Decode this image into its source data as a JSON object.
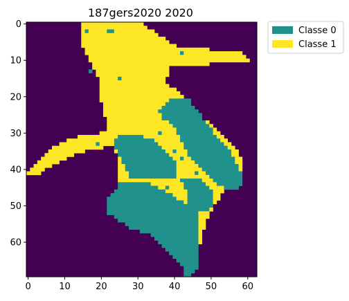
{
  "chart_data": {
    "type": "heatmap",
    "title": "187gers2020 2020",
    "xlabel": "",
    "ylabel": "",
    "grid": false,
    "x_ticks": [
      0,
      10,
      20,
      30,
      40,
      50,
      60
    ],
    "y_ticks": [
      0,
      10,
      20,
      30,
      40,
      50,
      60
    ],
    "xlim": [
      -0.5,
      62.5
    ],
    "ylim": [
      69.5,
      -0.5
    ],
    "n_cols": 63,
    "n_rows": 70,
    "colors": {
      "background": "#440154",
      "classe_0": "#21918c",
      "classe_1": "#fde725"
    },
    "legend": {
      "placement": "outside-top-right",
      "entries": [
        {
          "label": "Classe 0",
          "color": "#21918c"
        },
        {
          "label": "Classe 1",
          "color": "#fde725"
        }
      ]
    },
    "classe_1_regions": [
      {
        "name": "top-head",
        "rows": [
          [
            0,
            15,
            31
          ],
          [
            3,
            15,
            35
          ],
          [
            6,
            15,
            40
          ],
          [
            8,
            16,
            58
          ],
          [
            10,
            17,
            60
          ],
          [
            12,
            18,
            38
          ],
          [
            16,
            20,
            37
          ],
          [
            20,
            20,
            42
          ],
          [
            24,
            21,
            44
          ],
          [
            28,
            22,
            50
          ],
          [
            31,
            23,
            53
          ],
          [
            34,
            24,
            56
          ],
          [
            38,
            25,
            58
          ],
          [
            42,
            25,
            58
          ],
          [
            46,
            25,
            53
          ],
          [
            50,
            30,
            50
          ],
          [
            54,
            38,
            48
          ],
          [
            58,
            42,
            47
          ],
          [
            62,
            42,
            46
          ]
        ]
      },
      {
        "name": "left-arm",
        "rows": [
          [
            30,
            20,
            30
          ],
          [
            31,
            14,
            30
          ],
          [
            32,
            11,
            25
          ],
          [
            33,
            9,
            23
          ],
          [
            34,
            7,
            20
          ],
          [
            35,
            6,
            15
          ],
          [
            36,
            5,
            12
          ],
          [
            37,
            4,
            10
          ],
          [
            38,
            3,
            8
          ],
          [
            39,
            2,
            6
          ],
          [
            40,
            1,
            4
          ],
          [
            41,
            0,
            3
          ]
        ]
      }
    ],
    "classe_0_regions": [
      {
        "name": "right-band",
        "rows": [
          [
            21,
            39,
            44
          ],
          [
            22,
            38,
            44
          ],
          [
            23,
            37,
            45
          ],
          [
            24,
            36,
            46
          ],
          [
            26,
            37,
            47
          ],
          [
            28,
            40,
            49
          ],
          [
            30,
            41,
            50
          ],
          [
            32,
            42,
            52
          ],
          [
            34,
            43,
            54
          ],
          [
            36,
            44,
            55
          ],
          [
            38,
            46,
            56
          ],
          [
            40,
            48,
            57
          ],
          [
            42,
            50,
            58
          ],
          [
            44,
            52,
            58
          ],
          [
            45,
            54,
            57
          ]
        ]
      },
      {
        "name": "center-band",
        "rows": [
          [
            31,
            25,
            31
          ],
          [
            32,
            24,
            34
          ],
          [
            34,
            24,
            36
          ],
          [
            36,
            25,
            38
          ],
          [
            38,
            26,
            40
          ],
          [
            40,
            27,
            40
          ],
          [
            42,
            28,
            40
          ]
        ]
      },
      {
        "name": "lower-body",
        "rows": [
          [
            44,
            25,
            33
          ],
          [
            46,
            24,
            37
          ],
          [
            48,
            22,
            40
          ],
          [
            50,
            22,
            44
          ],
          [
            52,
            22,
            46
          ],
          [
            54,
            25,
            46
          ],
          [
            56,
            28,
            46
          ],
          [
            58,
            34,
            46
          ],
          [
            60,
            36,
            46
          ],
          [
            62,
            38,
            46
          ],
          [
            64,
            40,
            46
          ],
          [
            66,
            42,
            46
          ],
          [
            68,
            43,
            45
          ],
          [
            69,
            43,
            44
          ]
        ]
      },
      {
        "name": "lower-right-band",
        "rows": [
          [
            43,
            42,
            47
          ],
          [
            45,
            43,
            49
          ],
          [
            47,
            44,
            50
          ],
          [
            49,
            44,
            50
          ],
          [
            51,
            45,
            49
          ]
        ]
      }
    ],
    "classe_0_specks": [
      [
        2,
        16
      ],
      [
        2,
        22
      ],
      [
        2,
        23
      ],
      [
        8,
        42
      ],
      [
        13,
        17
      ],
      [
        15,
        25
      ],
      [
        30,
        36
      ],
      [
        33,
        19
      ],
      [
        35,
        40
      ],
      [
        37,
        42
      ],
      [
        41,
        46
      ],
      [
        45,
        38
      ],
      [
        49,
        31
      ]
    ]
  }
}
